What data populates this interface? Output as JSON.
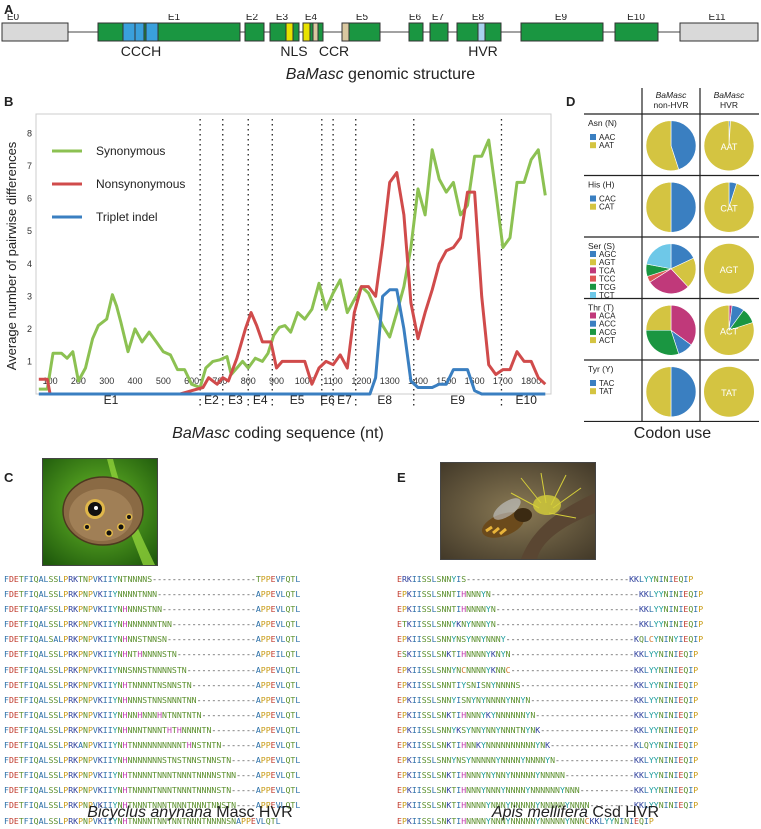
{
  "panelA": {
    "letter": "A",
    "caption_italic": "BaMasc",
    "caption_rest": " genomic structure",
    "exons": [
      "E0",
      "E1",
      "E2",
      "E3",
      "E4",
      "E5",
      "E6",
      "E7",
      "E8",
      "E9",
      "E10",
      "E11"
    ],
    "features": [
      "CCCH",
      "NLS",
      "CCR",
      "HVR"
    ],
    "colors": {
      "coding": "#1a9641",
      "utr": "#d9d9d9",
      "cccH": "#3aa0dc",
      "nls": "#e8e200",
      "ccr": "#d9c7a0",
      "hvr": "#a7d3ee"
    }
  },
  "panelB": {
    "letter": "B",
    "caption_italic": "BaMasc",
    "caption_rest": " coding sequence (nt)",
    "exon_labels": [
      "E1",
      "E2",
      "E3",
      "E4",
      "E5",
      "E6",
      "E7",
      "E8",
      "E9",
      "E10"
    ]
  },
  "chart_data": {
    "type": "line",
    "ylabel": "Average number of pairwise differences",
    "xlim": [
      50,
      1870
    ],
    "ylim": [
      0,
      8.6
    ],
    "x_ticks": [
      100,
      200,
      300,
      400,
      500,
      600,
      700,
      800,
      900,
      1000,
      1100,
      1200,
      1300,
      1400,
      1500,
      1600,
      1700,
      1800
    ],
    "y_ticks": [
      1,
      2,
      3,
      4,
      5,
      6,
      7,
      8
    ],
    "exon_boundaries": [
      630,
      710,
      800,
      885,
      1060,
      1100,
      1180,
      1385,
      1695
    ],
    "legend": "top-left",
    "series": [
      {
        "name": "Synonymous",
        "color": "#8cc152",
        "x": [
          60,
          90,
          110,
          140,
          160,
          180,
          200,
          225,
          250,
          270,
          300,
          320,
          335,
          350,
          375,
          400,
          425,
          450,
          475,
          500,
          525,
          550,
          575,
          600,
          630,
          650,
          675,
          700,
          725,
          740,
          760,
          780,
          800,
          825,
          850,
          870,
          890,
          910,
          930,
          950,
          975,
          1000,
          1025,
          1050,
          1075,
          1100,
          1125,
          1150,
          1175,
          1200,
          1225,
          1250,
          1275,
          1300,
          1325,
          1350,
          1375,
          1400,
          1425,
          1450,
          1475,
          1500,
          1525,
          1550,
          1575,
          1600,
          1625,
          1650,
          1675,
          1700,
          1725,
          1750,
          1775,
          1800,
          1825,
          1850
        ],
        "values": [
          0.15,
          0.15,
          1.25,
          1.25,
          1.1,
          1.3,
          0.4,
          0.8,
          1.7,
          2.1,
          2.3,
          3.05,
          2.7,
          2.2,
          1.3,
          2.0,
          1.6,
          1.9,
          1.6,
          1.3,
          1.2,
          0.75,
          0.75,
          0.3,
          0.2,
          0.8,
          1.0,
          1.05,
          1.15,
          0.6,
          0.8,
          1.0,
          0.8,
          1.1,
          1.0,
          1.25,
          1.8,
          2.05,
          2.1,
          1.9,
          2.5,
          2.3,
          2.6,
          3.4,
          2.6,
          3.1,
          3.5,
          2.5,
          2.9,
          3.3,
          3.1,
          2.6,
          2.1,
          1.75,
          2.5,
          3.3,
          4.5,
          6.3,
          5.5,
          7.5,
          6.6,
          6.2,
          6.5,
          5.5,
          5.8,
          7.3,
          7.3,
          7.8,
          6.2,
          4.5,
          4.8,
          6.5,
          6.5,
          7.2,
          7.5,
          6.1
        ]
      },
      {
        "name": "Nonsynonymous",
        "color": "#d04b4b",
        "x": [
          60,
          90,
          100,
          560,
          600,
          640,
          660,
          690,
          710,
          730,
          760,
          790,
          810,
          830,
          850,
          880,
          900,
          920,
          950,
          975,
          1000,
          1025,
          1050,
          1075,
          1100,
          1125,
          1150,
          1175,
          1200,
          1225,
          1250,
          1275,
          1300,
          1325,
          1350,
          1375,
          1400,
          1425,
          1450,
          1475,
          1500,
          1525,
          1550,
          1575,
          1600,
          1625,
          1650,
          1675,
          1700,
          1725,
          1750,
          1775,
          1800,
          1825,
          1850
        ],
        "values": [
          0.45,
          0.45,
          0,
          0,
          0.1,
          0.2,
          0.5,
          0.3,
          0.5,
          0.4,
          1.1,
          2.0,
          2.5,
          2.1,
          1.6,
          1.6,
          0.8,
          1.0,
          1.0,
          1.0,
          1.0,
          0.3,
          0.8,
          1.0,
          0.9,
          1.2,
          0.8,
          2.5,
          3.3,
          3.3,
          3.0,
          4.6,
          6.5,
          6.8,
          5.5,
          2.8,
          1.7,
          2.5,
          3.2,
          4.0,
          4.4,
          4.5,
          4.8,
          6.2,
          6.2,
          3.0,
          0.9,
          0.6,
          0.75,
          0.75,
          1.3,
          1.0,
          1.0,
          0.5,
          0.3
        ]
      },
      {
        "name": "Triplet indel",
        "color": "#3a7fc1",
        "x": [
          60,
          1230,
          1250,
          1275,
          1300,
          1325,
          1350,
          1375,
          1400,
          1425,
          1450,
          1475,
          1500,
          1525,
          1550,
          1575,
          1600,
          1625,
          1650,
          1850
        ],
        "values": [
          0,
          0,
          0.5,
          3.0,
          3.2,
          3.2,
          2.0,
          0.4,
          0.2,
          0.2,
          0.2,
          0.3,
          0.3,
          0.75,
          0.75,
          0.75,
          0.1,
          0,
          0,
          0
        ]
      }
    ]
  },
  "panelC": {
    "letter": "C",
    "caption_italic": "Bicyclus anynana",
    "caption_rest": " Masc HVR",
    "sequences": [
      "FDETFIQALSSLPRKTNPVKIIYNTNNNNS---------------------TPPEVFQTL",
      "FDETFIQALSSLPRKPNPVKIIYNNNNTNNN--------------------APPEVLQTL",
      "FDETFIQAFSSLPRKPNPVKIIYNHNNNSTNN-------------------APPEVLQTL",
      "FDETFIQALSSLPRKPNPVKIIYNHNNNNNNTNN-----------------APPEVLQTL",
      "FDETFIQALSALPRKPNPVKIIYNHNNSTNNSN------------------APPEVLQTL",
      "FDETFIQALSSLPRKPNPVKIIYNHNTHNNNNSTN----------------APPEILQTL",
      "FDETFIQALSSLPRKPNPVKIIYNNSNNSTNNNNSTN--------------APPEVLQTL",
      "FDETFIQALSSLPRKPNPVKIIYNHTNNNNTNSNNSTN-------------APPEVLQTL",
      "FDETFIQALSSLPRKPNPVKIIYNHNNNSTNNSNNNTNN------------APPEVLQTL",
      "FDETFIQALSSLPRKPNPVKIIYNHNNHNNNHNTNNTNTN-----------APPEVLQTL",
      "FDETFIQALSSLPRKPNPVKIIYNHNNNTNNNTHTHNNNNTN---------APPEVLQTL",
      "FDETFIQALSSLPRKANPVKIIYNHTNNNNNNNNNNTHNSTNTN-------APPEVLQTL",
      "FDETFIQALSSLPRKPNPVKIIYNHNNNNNNNSTNSTNNSTNNSTN-----APPEVLQTL",
      "FDETFIQALSSLPRKPNPVKIIYNHTNNNNTNNNTNNNTNNNNSTNN----APPEVLQTL",
      "FDETFIQALSSLPRKPNPVKIIYNHTNNNNTNNNTNNNTNNNNSTN-----APPEVLQTL",
      "FDETFIQALSSLPRKPNPVKIIYNHTNNNTNNNTNNNTNNNTNNSTN----APPEVLQTL",
      "FDETFIQALSSLPRKPNPVKIIYNHTNNNNTNNTNNTNNNTNNNNSNAPPEVLQTL"
    ]
  },
  "panelD": {
    "letter": "D",
    "caption": "Codon use",
    "col1_italic": "BaMasc",
    "col1_rest": "non-HVR",
    "col2_italic": "BaMasc",
    "col2_rest": "HVR",
    "groups": [
      {
        "aa": "Asn (N)",
        "codons": [
          "AAC",
          "AAT"
        ],
        "colors": [
          "#3a7fc1",
          "#d4c441"
        ],
        "nonhvr": [
          0.45,
          0.55
        ],
        "hvr": [
          0.01,
          0.99
        ],
        "hvr_label": "AAT"
      },
      {
        "aa": "His (H)",
        "codons": [
          "CAC",
          "CAT"
        ],
        "colors": [
          "#3a7fc1",
          "#d4c441"
        ],
        "nonhvr": [
          0.5,
          0.5
        ],
        "hvr": [
          0.05,
          0.95
        ],
        "hvr_label": "CAT"
      },
      {
        "aa": "Ser (S)",
        "codons": [
          "AGC",
          "AGT",
          "TCA",
          "TCC",
          "TCG",
          "TCT"
        ],
        "colors": [
          "#3a7fc1",
          "#d4c441",
          "#c0397a",
          "#e05656",
          "#1a9641",
          "#6ec8e8"
        ],
        "nonhvr": [
          0.18,
          0.2,
          0.28,
          0.04,
          0.08,
          0.22
        ],
        "hvr": [
          0,
          1,
          0,
          0,
          0,
          0
        ],
        "hvr_label": "AGT"
      },
      {
        "aa": "Thr (T)",
        "codons": [
          "ACA",
          "ACC",
          "ACG",
          "ACT"
        ],
        "colors": [
          "#c0397a",
          "#3a7fc1",
          "#1a9641",
          "#d4c441"
        ],
        "nonhvr": [
          0.35,
          0.1,
          0.3,
          0.25
        ],
        "hvr": [
          0.02,
          0.08,
          0.1,
          0.8
        ],
        "hvr_label": "ACT"
      },
      {
        "aa": "Tyr (Y)",
        "codons": [
          "TAC",
          "TAT"
        ],
        "colors": [
          "#3a7fc1",
          "#d4c441"
        ],
        "nonhvr": [
          0.5,
          0.5
        ],
        "hvr": [
          0,
          1
        ],
        "hvr_label": "TAT"
      }
    ]
  },
  "panelE": {
    "letter": "E",
    "caption_italic": "Apis mellifera",
    "caption_rest": " Csd HVR",
    "sequences": [
      "ERKIISSLSNNYIS---------------------------------KKLYYNINIEQIP",
      "EPKIISSLSNNTIHNNNYN------------------------------KKLYYNINIEQIP",
      "EPKIISSLSNNTIHNNNNYN-----------------------------KKLYYNINIEQIP",
      "ETKIISSLSNNYKNYNNNYN-----------------------------KKLYYNINIEQIP",
      "EPKIISSLSNNYNSYNNYNNNY--------------------------KQLCYNINYIEQIP",
      "ESKIISSLSNKTIHNNNNYKNYN-------------------------KKLYYNINIEQIP",
      "EPKIISSLSNNYNCNNNNYKNNC-------------------------KKLYYNINIEQIP",
      "EPKIISSLSNNTIYSNISNYNNNNS-----------------------KKLYYNINIEQIP",
      "EPKIISSLSNNYISNYNYNNNNYNNYN---------------------KKLYYNINIEQIP",
      "EPKIISSLSNKTIHNNNYKYNNNNNNYN--------------------KKLYYNINIEQIP",
      "EPKIISSLSNNYKSYNNYNNYNNNTNYNK-------------------KKLYYNINIEQIP",
      "EPKIISSLSNKTIHNNKYNNNNNNNNNNYNK-----------------KLQYYNINIEQIP",
      "EPKIISSLSNNYNSYNNNNNYNNNNYNNNNYN----------------KKLYYNINIEQIP",
      "EPKIISSLSNKTIHNNNYNYNNYNNNNNYNNNNN--------------KKLYYNINIEQIP",
      "EPKIISSLSNKTIHNNNYNNNYNNNNYNNNNNNYNNN-----------KKLYYNINIEQIP",
      "EPKIISSLSNKTIHNNNNYNNNYNNNNNYNNNNNYNNNN---------KKLYYNINIEQIP",
      "EPKIISSLSNKTIHNNNNYNNNYNNNNNYNNNNNYNNNCKKLYYNINIEQIP"
    ]
  }
}
